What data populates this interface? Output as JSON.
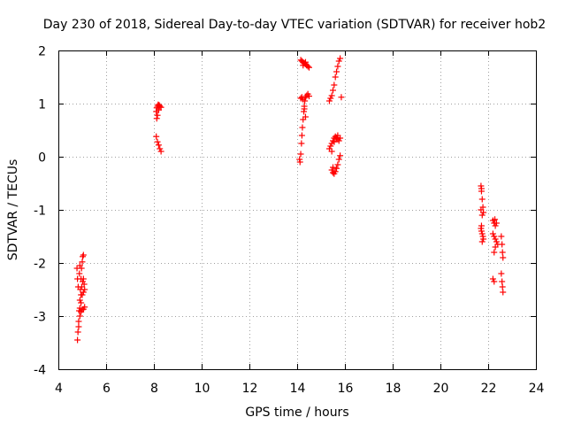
{
  "chart_data": {
    "type": "scatter",
    "title": "Day 230 of 2018, Sidereal Day-to-day VTEC variation (SDTVAR) for receiver hob2",
    "xlabel": "GPS time / hours",
    "ylabel": "SDTVAR / TECUs",
    "xlim": [
      4,
      24
    ],
    "ylim": [
      -4,
      2
    ],
    "xticks": [
      "4",
      "6",
      "8",
      "10",
      "12",
      "14",
      "16",
      "18",
      "20",
      "22",
      "24"
    ],
    "yticks": [
      "-4",
      "-3",
      "-2",
      "-1",
      "0",
      "1",
      "2"
    ],
    "grid": true,
    "marker": "+",
    "series": [
      {
        "name": "SDTVAR",
        "color": "#ff0000",
        "points": [
          [
            4.8,
            -3.45
          ],
          [
            4.82,
            -3.3
          ],
          [
            4.85,
            -3.1
          ],
          [
            4.87,
            -2.9
          ],
          [
            4.9,
            -2.7
          ],
          [
            4.92,
            -2.5
          ],
          [
            4.95,
            -2.3
          ],
          [
            4.97,
            -2.1
          ],
          [
            5.0,
            -1.98
          ],
          [
            5.02,
            -1.88
          ],
          [
            5.05,
            -1.85
          ],
          [
            4.78,
            -2.1
          ],
          [
            4.8,
            -2.3
          ],
          [
            4.83,
            -2.45
          ],
          [
            4.88,
            -2.2
          ],
          [
            4.9,
            -2.05
          ],
          [
            4.95,
            -2.6
          ],
          [
            4.98,
            -2.45
          ],
          [
            5.02,
            -2.35
          ],
          [
            5.05,
            -2.3
          ],
          [
            5.08,
            -2.4
          ],
          [
            5.1,
            -2.5
          ],
          [
            4.9,
            -2.85
          ],
          [
            4.95,
            -2.92
          ],
          [
            5.0,
            -2.88
          ],
          [
            5.05,
            -2.87
          ],
          [
            5.1,
            -2.83
          ],
          [
            4.85,
            -3.2
          ],
          [
            4.9,
            -3.0
          ],
          [
            4.95,
            -2.75
          ],
          [
            5.0,
            -2.6
          ],
          [
            5.05,
            -2.55
          ],
          [
            8.1,
            0.38
          ],
          [
            8.15,
            0.28
          ],
          [
            8.2,
            0.22
          ],
          [
            8.25,
            0.15
          ],
          [
            8.3,
            0.1
          ],
          [
            8.1,
            0.85
          ],
          [
            8.12,
            0.92
          ],
          [
            8.15,
            0.95
          ],
          [
            8.18,
            0.98
          ],
          [
            8.22,
            0.97
          ],
          [
            8.25,
            0.95
          ],
          [
            8.3,
            0.93
          ],
          [
            8.2,
            0.88
          ],
          [
            8.15,
            0.78
          ],
          [
            8.12,
            0.72
          ],
          [
            14.15,
            1.82
          ],
          [
            14.2,
            1.8
          ],
          [
            14.25,
            1.78
          ],
          [
            14.3,
            1.76
          ],
          [
            14.35,
            1.74
          ],
          [
            14.4,
            1.72
          ],
          [
            14.45,
            1.7
          ],
          [
            14.5,
            1.68
          ],
          [
            14.25,
            1.72
          ],
          [
            14.35,
            1.78
          ],
          [
            14.1,
            -0.05
          ],
          [
            14.12,
            -0.1
          ],
          [
            14.15,
            0.05
          ],
          [
            14.18,
            0.25
          ],
          [
            14.2,
            0.4
          ],
          [
            14.22,
            0.55
          ],
          [
            14.25,
            0.7
          ],
          [
            14.28,
            0.85
          ],
          [
            14.3,
            0.95
          ],
          [
            14.32,
            1.05
          ],
          [
            14.35,
            1.12
          ],
          [
            14.4,
            1.15
          ],
          [
            14.45,
            1.18
          ],
          [
            14.5,
            1.14
          ],
          [
            14.15,
            1.1
          ],
          [
            14.2,
            1.12
          ],
          [
            14.25,
            1.08
          ],
          [
            14.3,
            0.9
          ],
          [
            14.35,
            0.75
          ],
          [
            15.35,
            1.05
          ],
          [
            15.4,
            1.1
          ],
          [
            15.45,
            1.15
          ],
          [
            15.5,
            1.25
          ],
          [
            15.55,
            1.35
          ],
          [
            15.6,
            1.5
          ],
          [
            15.65,
            1.6
          ],
          [
            15.7,
            1.7
          ],
          [
            15.75,
            1.8
          ],
          [
            15.8,
            1.85
          ],
          [
            15.85,
            1.12
          ],
          [
            15.35,
            0.15
          ],
          [
            15.4,
            0.2
          ],
          [
            15.45,
            0.25
          ],
          [
            15.5,
            0.3
          ],
          [
            15.55,
            0.35
          ],
          [
            15.6,
            0.38
          ],
          [
            15.65,
            0.36
          ],
          [
            15.7,
            0.33
          ],
          [
            15.75,
            0.3
          ],
          [
            15.8,
            0.35
          ],
          [
            15.45,
            0.1
          ],
          [
            15.55,
            0.28
          ],
          [
            15.7,
            0.4
          ],
          [
            15.45,
            -0.25
          ],
          [
            15.5,
            -0.3
          ],
          [
            15.55,
            -0.32
          ],
          [
            15.6,
            -0.28
          ],
          [
            15.65,
            -0.22
          ],
          [
            15.7,
            -0.15
          ],
          [
            15.75,
            -0.05
          ],
          [
            15.8,
            0.02
          ],
          [
            15.5,
            -0.2
          ],
          [
            21.7,
            -0.55
          ],
          [
            21.72,
            -0.65
          ],
          [
            21.75,
            -0.8
          ],
          [
            21.78,
            -0.95
          ],
          [
            21.8,
            -1.05
          ],
          [
            21.75,
            -1.1
          ],
          [
            21.7,
            -1.0
          ],
          [
            21.72,
            -0.6
          ],
          [
            21.7,
            -1.35
          ],
          [
            21.72,
            -1.4
          ],
          [
            21.75,
            -1.45
          ],
          [
            21.78,
            -1.5
          ],
          [
            21.8,
            -1.55
          ],
          [
            21.75,
            -1.6
          ],
          [
            21.72,
            -1.3
          ],
          [
            22.2,
            -1.2
          ],
          [
            22.25,
            -1.25
          ],
          [
            22.3,
            -1.3
          ],
          [
            22.35,
            -1.25
          ],
          [
            22.28,
            -1.18
          ],
          [
            22.2,
            -1.45
          ],
          [
            22.25,
            -1.5
          ],
          [
            22.3,
            -1.55
          ],
          [
            22.35,
            -1.6
          ],
          [
            22.4,
            -1.65
          ],
          [
            22.3,
            -1.7
          ],
          [
            22.25,
            -1.8
          ],
          [
            22.55,
            -1.5
          ],
          [
            22.58,
            -1.65
          ],
          [
            22.6,
            -1.8
          ],
          [
            22.62,
            -1.9
          ],
          [
            22.2,
            -2.3
          ],
          [
            22.25,
            -2.35
          ],
          [
            22.55,
            -2.2
          ],
          [
            22.6,
            -2.45
          ],
          [
            22.62,
            -2.55
          ],
          [
            22.58,
            -2.35
          ]
        ]
      }
    ]
  }
}
